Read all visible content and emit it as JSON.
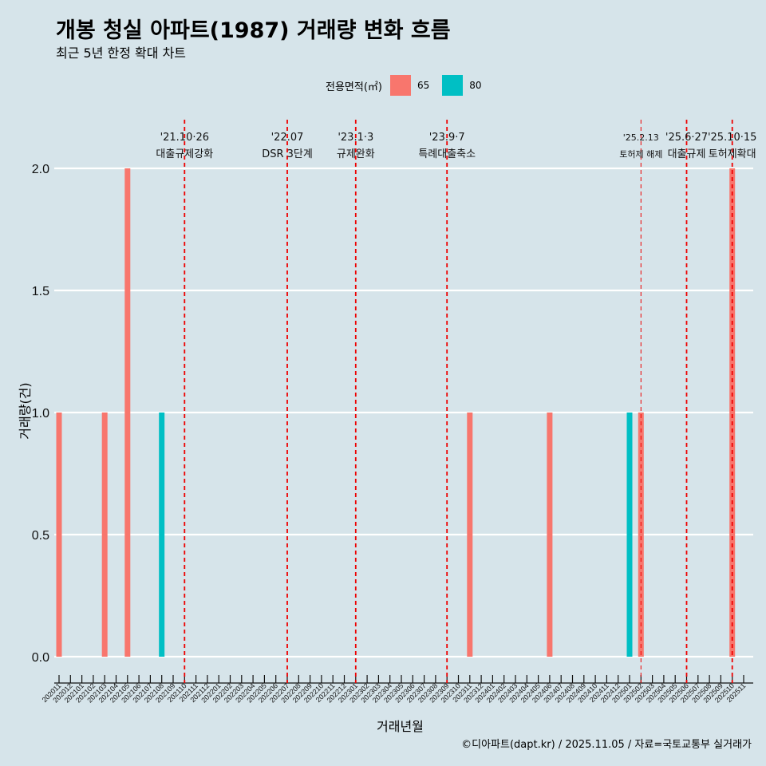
{
  "title": "개봉 청실 아파트(1987) 거래량 변화 흐름",
  "subtitle": "최근 5년 한정 확대 차트",
  "caption": "©디아파트(dapt.kr) / 2025.11.05 / 자료=국토교통부 실거래가",
  "legend": {
    "title": "전용면적(㎡)",
    "items": [
      {
        "label": "65",
        "color": "#f8766d"
      },
      {
        "label": "80",
        "color": "#00bfc4"
      }
    ]
  },
  "chart_data": {
    "type": "bar",
    "title": "개봉 청실 아파트(1987) 거래량 변화 흐름",
    "xlabel": "거래년월",
    "ylabel": "거래량(건)",
    "ylim": [
      0,
      2
    ],
    "yticks": [
      "0.0",
      "0.5",
      "1.0",
      "1.5",
      "2.0"
    ],
    "categories": [
      "202011",
      "202012",
      "202101",
      "202102",
      "202103",
      "202104",
      "202105",
      "202106",
      "202107",
      "202108",
      "202109",
      "202110",
      "202111",
      "202112",
      "202201",
      "202202",
      "202203",
      "202204",
      "202205",
      "202206",
      "202207",
      "202208",
      "202209",
      "202210",
      "202211",
      "202212",
      "202301",
      "202302",
      "202303",
      "202304",
      "202305",
      "202306",
      "202307",
      "202308",
      "202309",
      "202310",
      "202311",
      "202312",
      "202401",
      "202402",
      "202403",
      "202404",
      "202405",
      "202406",
      "202407",
      "202408",
      "202409",
      "202410",
      "202411",
      "202412",
      "202501",
      "202502",
      "202503",
      "202504",
      "202505",
      "202506",
      "202507",
      "202508",
      "202509",
      "202510",
      "202511"
    ],
    "series": [
      {
        "name": "65",
        "color": "#f8766d",
        "points": [
          {
            "x": "202011",
            "y": 1
          },
          {
            "x": "202103",
            "y": 1
          },
          {
            "x": "202105",
            "y": 2
          },
          {
            "x": "202311",
            "y": 1
          },
          {
            "x": "202406",
            "y": 1
          },
          {
            "x": "202502",
            "y": 1
          },
          {
            "x": "202510",
            "y": 2
          }
        ]
      },
      {
        "name": "80",
        "color": "#00bfc4",
        "points": [
          {
            "x": "202108",
            "y": 1
          },
          {
            "x": "202501",
            "y": 1
          }
        ]
      }
    ],
    "events": [
      {
        "x": 11.0,
        "date": "'21.10·26",
        "label": "대출규제강화"
      },
      {
        "x": 20.0,
        "date": "'22.07",
        "label": "DSR 3단계"
      },
      {
        "x": 26.0,
        "date": "'23.1·3",
        "label": "규제완화"
      },
      {
        "x": 34.0,
        "date": "'23.9·7",
        "label": "특례대출축소"
      },
      {
        "x": 51.0,
        "date": "'25.2.13",
        "label": "토허제 해제",
        "thin": true
      },
      {
        "x": 55.0,
        "date": "'25.6·27",
        "label": "대출규제"
      },
      {
        "x": 59.0,
        "date": "'25.10·15",
        "label": "토허제확대"
      }
    ]
  }
}
